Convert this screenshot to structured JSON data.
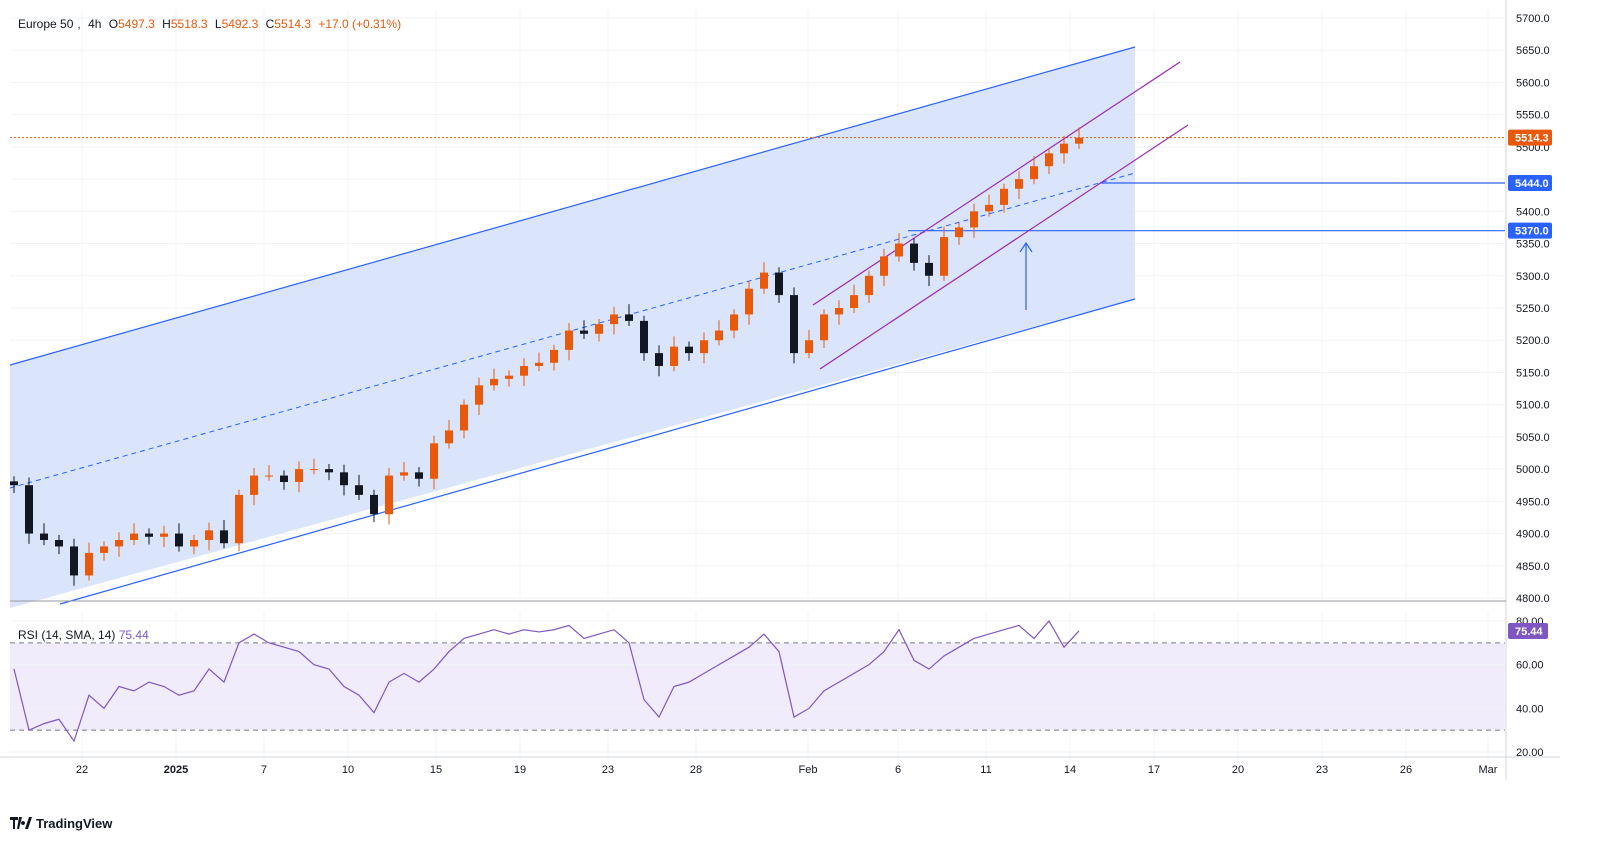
{
  "legend": {
    "symbol": "Europe 50",
    "interval": "4h",
    "open_label": "O",
    "open": "5497.3",
    "high_label": "H",
    "high": "5518.3",
    "low_label": "L",
    "low": "5492.3",
    "close_label": "C",
    "close": "5514.3",
    "change": "+17.0 (+0.31%)"
  },
  "rsi_legend": {
    "label": "RSI (14, SMA, 14)",
    "value": "75.44"
  },
  "brand": {
    "name": "TradingView"
  },
  "colors": {
    "up": "#e8590c",
    "down": "#131722",
    "channel_fill": "#d6e2fb",
    "channel_line": "#2962ff",
    "purple_channel": "#9c27b0",
    "rsi_line": "#7e57c2",
    "rsi_band": "#f1ecfb",
    "price_badge": "#e8590c",
    "level_badge": "#2962ff"
  },
  "chart_data": [
    {
      "type": "candlestick",
      "title": "Europe 50, 4h",
      "x_tick_labels": [
        "22",
        "2025",
        "7",
        "10",
        "15",
        "19",
        "23",
        "28",
        "Feb",
        "6",
        "11",
        "14",
        "17",
        "20",
        "23",
        "26",
        "Mar"
      ],
      "ylim": [
        4800,
        5700
      ],
      "y_ticks": [
        4800,
        4850,
        4900,
        4950,
        5000,
        5050,
        5100,
        5150,
        5200,
        5250,
        5300,
        5350,
        5400,
        5450,
        5500,
        5550,
        5600,
        5650,
        5700
      ],
      "last_price": 5514.3,
      "horizontal_levels": [
        5444.0,
        5370.0
      ],
      "close_series_approx": [
        4975,
        4900,
        4890,
        4880,
        4835,
        4870,
        4880,
        4890,
        4900,
        4895,
        4900,
        4880,
        4890,
        4905,
        4885,
        4960,
        4990,
        4990,
        4980,
        5000,
        5000,
        4995,
        4975,
        4960,
        4930,
        4990,
        4995,
        4985,
        5040,
        5060,
        5100,
        5130,
        5140,
        5145,
        5160,
        5165,
        5185,
        5215,
        5210,
        5225,
        5240,
        5230,
        5180,
        5160,
        5190,
        5180,
        5200,
        5215,
        5240,
        5280,
        5305,
        5270,
        5180,
        5200,
        5240,
        5250,
        5270,
        5300,
        5330,
        5350,
        5320,
        5300,
        5360,
        5375,
        5400,
        5410,
        5435,
        5450,
        5470,
        5490,
        5505,
        5514.3
      ],
      "grid": true
    },
    {
      "type": "line",
      "title": "RSI (14, SMA, 14)",
      "last_value": 75.44,
      "y_ticks": [
        20,
        40,
        60,
        80
      ],
      "bands": [
        30,
        70
      ],
      "values_approx": [
        58,
        30,
        33,
        35,
        25,
        46,
        40,
        50,
        48,
        52,
        50,
        46,
        48,
        58,
        52,
        70,
        74,
        70,
        68,
        66,
        60,
        58,
        50,
        46,
        38,
        52,
        56,
        52,
        58,
        66,
        72,
        74,
        76,
        74,
        76,
        75,
        76,
        78,
        72,
        74,
        76,
        70,
        44,
        36,
        50,
        52,
        56,
        60,
        64,
        68,
        74,
        66,
        36,
        40,
        48,
        52,
        56,
        60,
        66,
        76,
        62,
        58,
        64,
        68,
        72,
        74,
        76,
        78,
        72,
        80,
        68,
        75.44
      ],
      "grid": true
    }
  ]
}
